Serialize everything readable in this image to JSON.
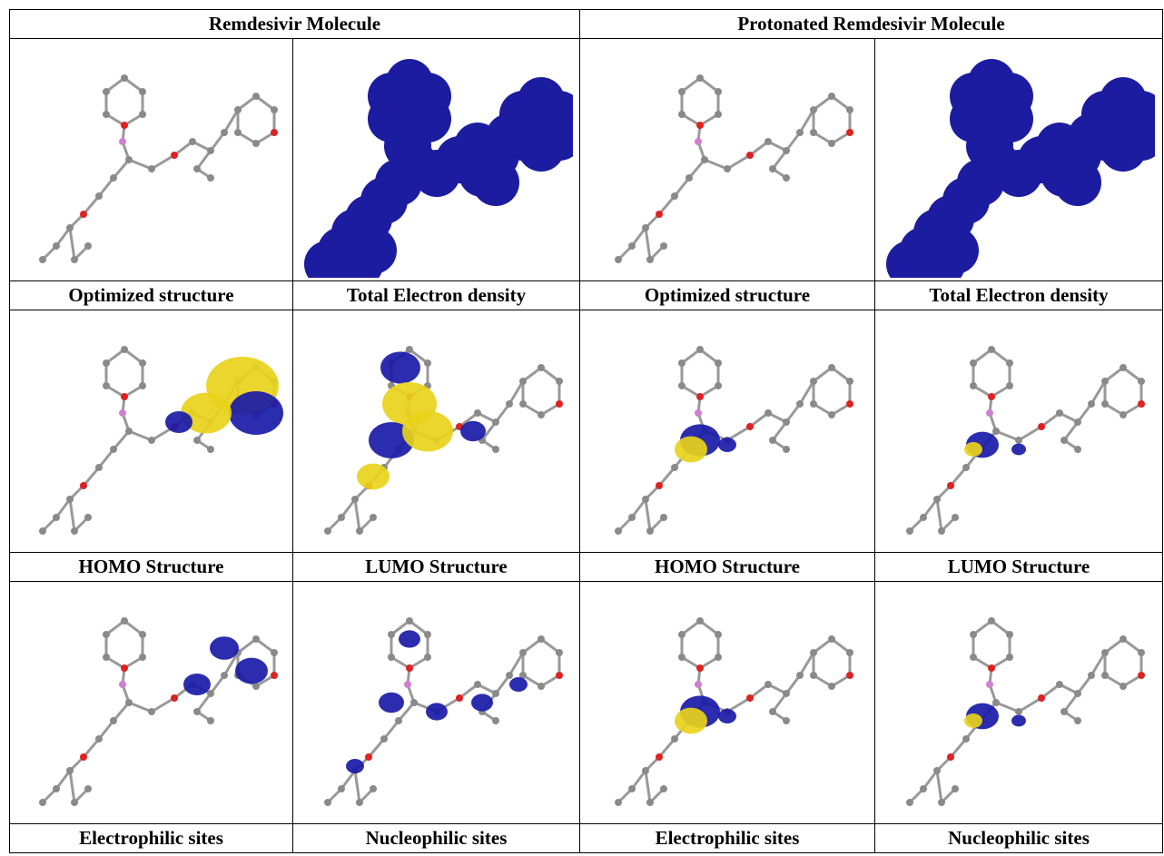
{
  "header": {
    "columns": [
      "Remdesivir Molecule",
      "Protonated Remdesivir Molecule"
    ]
  },
  "rows": [
    {
      "captions": [
        "Optimized structure",
        "Total Electron density",
        "Optimized structure",
        "Total Electron density"
      ]
    },
    {
      "captions": [
        "HOMO Structure",
        "LUMO Structure",
        "HOMO Structure",
        "LUMO Structure"
      ]
    },
    {
      "captions": [
        "Electrophilic sites",
        "Nucleophilic sites",
        "Electrophilic sites",
        "Nucleophilic sites"
      ]
    }
  ]
}
